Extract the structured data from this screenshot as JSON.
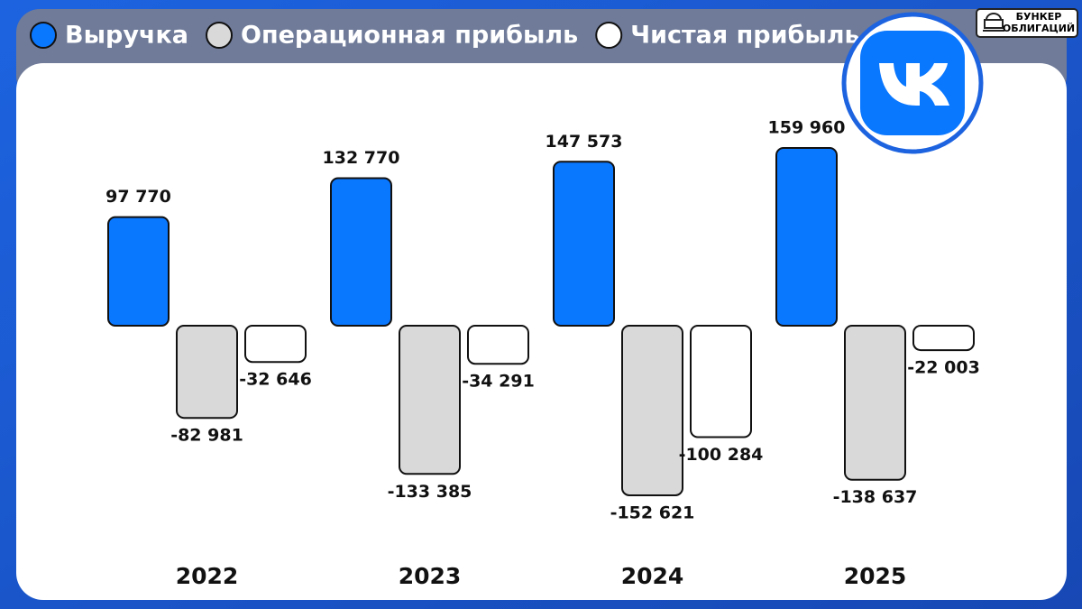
{
  "chart_data": {
    "type": "bar",
    "categories": [
      "2022",
      "2023",
      "2024",
      "2025"
    ],
    "series": [
      {
        "name": "Выручка",
        "color": "#0a77ff",
        "values": [
          97770,
          132770,
          147573,
          159960
        ],
        "value_labels": [
          "97 770",
          "132 770",
          "147 573",
          "159 960"
        ]
      },
      {
        "name": "Операционная прибыль",
        "color": "#d9d9d9",
        "values": [
          -82981,
          -133385,
          -152621,
          -138637
        ],
        "value_labels": [
          "-82 981",
          "-133 385",
          "-152 621",
          "-138 637"
        ]
      },
      {
        "name": "Чистая прибыль",
        "color": "#ffffff",
        "values": [
          -32646,
          -34291,
          -100284,
          -22003
        ],
        "value_labels": [
          "-32 646",
          "-34 291",
          "-100 284",
          "-22 003"
        ]
      }
    ],
    "annotations": [
      "БУНКЕР",
      "ОБЛИГАЦИЙ"
    ]
  }
}
